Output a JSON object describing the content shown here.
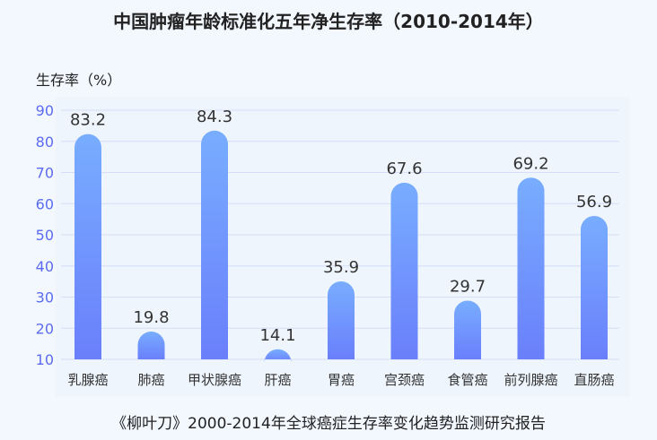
{
  "chart_data": {
    "type": "bar",
    "title": "中国肿瘤年龄标准化五年净生存率（2010-2014年）",
    "ylabel": "生存率（%）",
    "xlabel": "",
    "categories": [
      "乳腺癌",
      "肺癌",
      "甲状腺癌",
      "肝癌",
      "胃癌",
      "宫颈癌",
      "食管癌",
      "前列腺癌",
      "直肠癌"
    ],
    "values": [
      83.2,
      19.8,
      84.3,
      14.1,
      35.9,
      67.6,
      29.7,
      69.2,
      56.9
    ],
    "ylim": [
      10,
      90
    ],
    "yticks": [
      10,
      20,
      30,
      40,
      50,
      60,
      70,
      80,
      90
    ],
    "grid": true,
    "colors": {
      "bar_top": "#78adff",
      "bar_bottom": "#6a7ffb",
      "tick": "#5b6cf0",
      "grid": "#d6def8"
    }
  },
  "footer": "《柳叶刀》2000-2014年全球癌症生存率变化趋势监测研究报告"
}
